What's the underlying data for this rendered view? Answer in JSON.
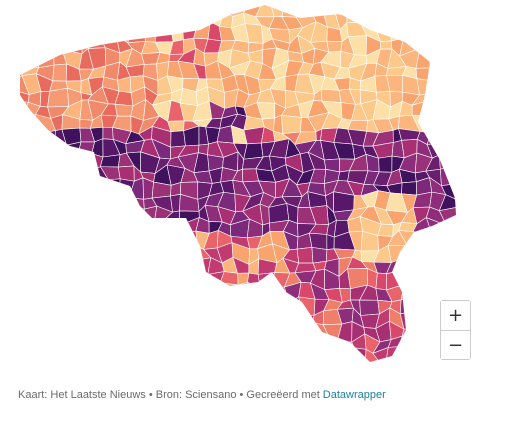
{
  "map": {
    "zoom_in": "+",
    "zoom_out": "−"
  },
  "footer": {
    "credit": "Kaart: Het Laatste Nieuws • Bron: Sciensano • Gecreëerd met",
    "link": "Datawrapper"
  }
}
